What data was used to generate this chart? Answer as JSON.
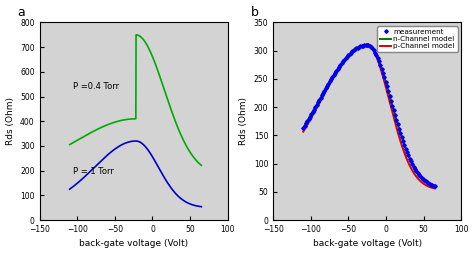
{
  "ax1": {
    "xlim": [
      -150,
      100
    ],
    "ylim": [
      0,
      800
    ],
    "xticks": [
      -150,
      -100,
      -50,
      0,
      50,
      100
    ],
    "yticks": [
      0,
      100,
      200,
      300,
      400,
      500,
      600,
      700,
      800
    ],
    "xlabel": "back-gate voltage (Volt)",
    "ylabel": "Rds (Ohm)",
    "label": "a",
    "annotation_green": "P =0.4 Torr",
    "annotation_blue": "P = 1 Torr",
    "green_color": "#00aa00",
    "blue_color": "#0000cc"
  },
  "ax2": {
    "xlim": [
      -150,
      100
    ],
    "ylim": [
      0,
      350
    ],
    "xticks": [
      -150,
      -100,
      -50,
      0,
      50,
      100
    ],
    "yticks": [
      0,
      50,
      100,
      150,
      200,
      250,
      300,
      350
    ],
    "xlabel": "back-gate voltage (Volt)",
    "ylabel": "Rds (Ohm)",
    "label": "b",
    "measurement_color": "#0000ee",
    "nchannel_color": "#007700",
    "pchannel_color": "#dd0000",
    "legend_labels": [
      "measurement",
      "n-Channel model",
      "p-Channel model"
    ]
  },
  "background_color": "#d3d3d3",
  "fig_facecolor": "#ffffff"
}
